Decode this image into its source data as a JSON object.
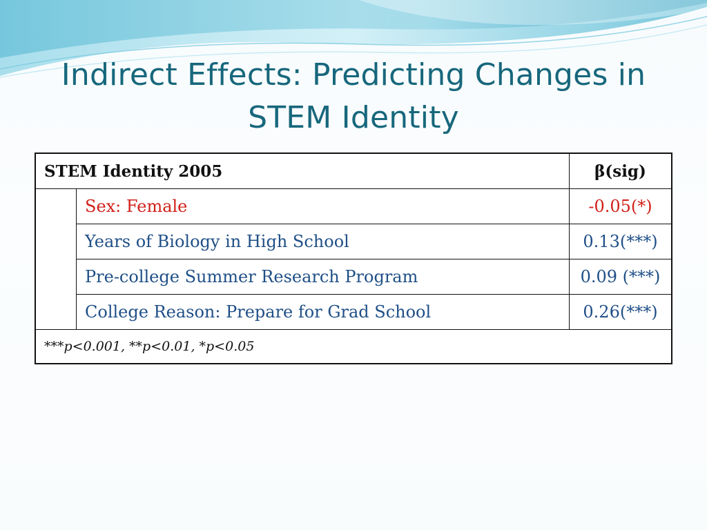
{
  "slide": {
    "title_line1": "Indirect Effects: Predicting Changes in",
    "title_line2": "STEM Identity"
  },
  "table": {
    "header_label": "STEM Identity 2005",
    "header_stat": "β(sig)",
    "rows": [
      {
        "label": "Sex: Female",
        "value": "-0.05(*)",
        "color": "#d1201a"
      },
      {
        "label": "Years of Biology in High School",
        "value": "0.13(***)",
        "color": "#1f4f87"
      },
      {
        "label": "Pre-college Summer Research Program",
        "value": "0.09 (***)",
        "color": "#1f4f87"
      },
      {
        "label": "College Reason: Prepare for Grad School",
        "value": "0.26(***)",
        "color": "#1f4f87"
      }
    ],
    "footnote": "***p<0.001, **p<0.01, *p<0.05"
  },
  "theme": {
    "title_color": "#17677c",
    "wave_colors": [
      "#8fd3e4",
      "#3aa9c7",
      "#c8eaf3"
    ]
  }
}
